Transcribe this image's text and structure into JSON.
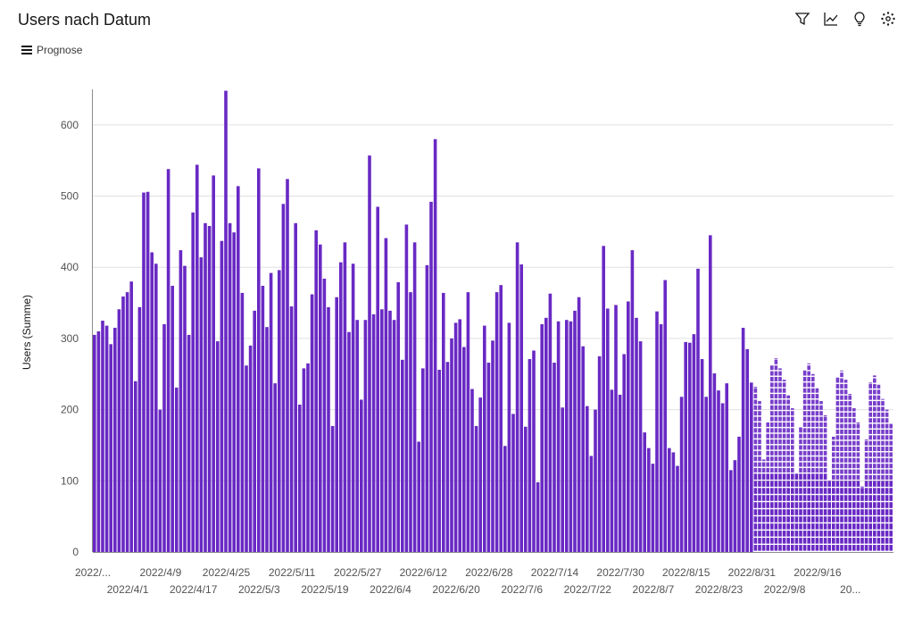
{
  "header": {
    "title": "Users nach Datum",
    "subtitle": "Prognose",
    "menu_icon": "hamburger-menu-icon",
    "toolbar_icons": [
      "filter-icon",
      "trend-line-icon",
      "lightbulb-icon",
      "settings-icon"
    ]
  },
  "colors": {
    "bar": "#6929c4",
    "grid": "#e0e0e0",
    "axis": "#161616"
  },
  "chart_data": {
    "type": "bar",
    "ylabel": "Users (Summe)",
    "ylim": [
      0,
      650
    ],
    "yticks": [
      0,
      100,
      200,
      300,
      400,
      500,
      600
    ],
    "grid": true,
    "start_date": "2022-03-28",
    "forecast_start_date": "2022-08-30",
    "values": [
      305,
      310,
      325,
      318,
      292,
      315,
      341,
      359,
      365,
      380,
      240,
      344,
      505,
      506,
      421,
      405,
      200,
      320,
      538,
      374,
      231,
      424,
      402,
      305,
      477,
      544,
      414,
      462,
      458,
      529,
      296,
      437,
      648,
      462,
      449,
      514,
      364,
      262,
      290,
      339,
      539,
      374,
      316,
      392,
      237,
      396,
      489,
      524,
      345,
      462,
      207,
      258,
      265,
      362,
      452,
      432,
      384,
      344,
      177,
      358,
      407,
      435,
      309,
      405,
      326,
      214,
      326,
      557,
      334,
      485,
      341,
      441,
      339,
      326,
      379,
      270,
      460,
      365,
      435,
      155,
      258,
      403,
      492,
      580,
      256,
      364,
      267,
      300,
      322,
      327,
      288,
      365,
      229,
      177,
      217,
      318,
      266,
      297,
      365,
      375,
      149,
      322,
      194,
      435,
      404,
      176,
      271,
      283,
      98,
      320,
      329,
      363,
      266,
      324,
      203,
      326,
      324,
      339,
      358,
      289,
      205,
      135,
      200,
      275,
      430,
      342,
      228,
      347,
      221,
      278,
      352,
      424,
      329,
      296,
      168,
      146,
      124,
      338,
      320,
      382,
      146,
      140,
      121,
      218,
      295,
      294,
      306,
      398,
      271,
      218,
      445,
      251,
      227,
      209,
      237,
      115,
      129,
      162,
      315,
      285,
      238
    ],
    "forecast": [
      {
        "low": 110,
        "high": 232
      },
      {
        "low": 110,
        "high": 212
      },
      {
        "low": 110,
        "high": 130
      },
      {
        "low": 110,
        "high": 182
      },
      {
        "low": 110,
        "high": 262
      },
      {
        "low": 110,
        "high": 272
      },
      {
        "low": 110,
        "high": 258
      },
      {
        "low": 110,
        "high": 242
      },
      {
        "low": 110,
        "high": 220
      },
      {
        "low": 110,
        "high": 202
      },
      {
        "low": 110,
        "high": 110
      },
      {
        "low": 105,
        "high": 175
      },
      {
        "low": 105,
        "high": 255
      },
      {
        "low": 105,
        "high": 265
      },
      {
        "low": 105,
        "high": 250
      },
      {
        "low": 105,
        "high": 230
      },
      {
        "low": 105,
        "high": 212
      },
      {
        "low": 105,
        "high": 192
      },
      {
        "low": 100,
        "high": 100
      },
      {
        "low": 100,
        "high": 162
      },
      {
        "low": 100,
        "high": 245
      },
      {
        "low": 100,
        "high": 255
      },
      {
        "low": 100,
        "high": 242
      },
      {
        "low": 100,
        "high": 222
      },
      {
        "low": 100,
        "high": 202
      },
      {
        "low": 100,
        "high": 182
      },
      {
        "low": 92,
        "high": 92
      },
      {
        "low": 92,
        "high": 158
      },
      {
        "low": 92,
        "high": 238
      },
      {
        "low": 92,
        "high": 248
      },
      {
        "low": 92,
        "high": 235
      },
      {
        "low": 92,
        "high": 215
      },
      {
        "low": 92,
        "high": 200
      },
      {
        "low": 92,
        "high": 180
      }
    ],
    "xticks_row1": [
      "2022/...",
      "2022/4/9",
      "2022/4/25",
      "2022/5/11",
      "2022/5/27",
      "2022/6/12",
      "2022/6/28",
      "2022/7/14",
      "2022/7/30",
      "2022/8/15",
      "2022/8/31",
      "2022/9/16"
    ],
    "xticks_row2": [
      "2022/4/1",
      "2022/4/17",
      "2022/5/3",
      "2022/5/19",
      "2022/6/4",
      "2022/6/20",
      "2022/7/6",
      "2022/7/22",
      "2022/8/7",
      "2022/8/23",
      "2022/9/8",
      "20..."
    ]
  }
}
